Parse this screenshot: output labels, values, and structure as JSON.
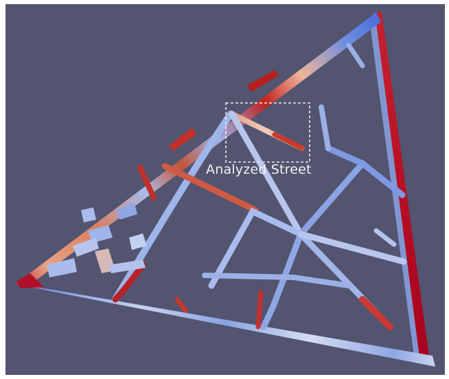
{
  "annotation": {
    "label": "Analyzed Street"
  },
  "colors": {
    "background": "#525470",
    "low": "#3c5fd6",
    "mid": "#dcdce6",
    "high": "#b40426",
    "box_stroke": "#f0f0f0"
  },
  "colormap": "coolwarm"
}
